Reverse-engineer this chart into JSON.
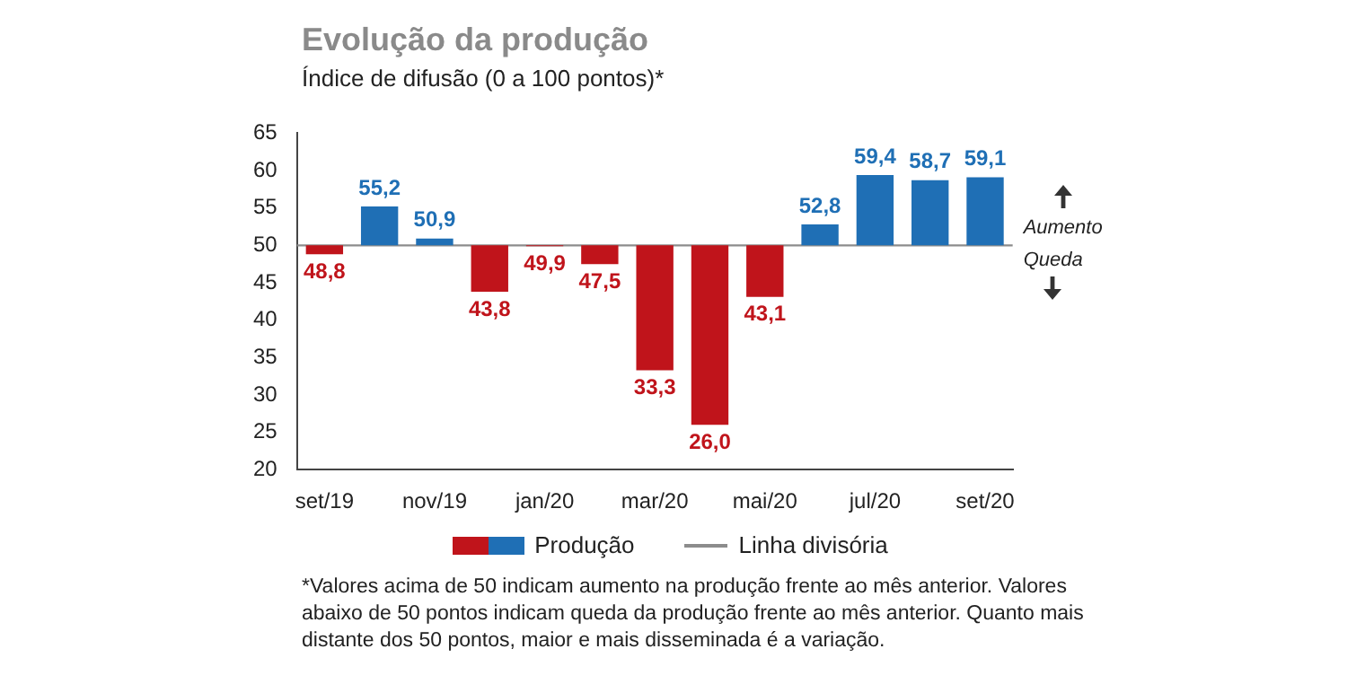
{
  "chart_data": {
    "type": "bar",
    "title": "Evolução da produção",
    "subtitle": "Índice de difusão (0 a 100 pontos)*",
    "categories": [
      "set/19",
      null,
      "nov/19",
      null,
      "jan/20",
      null,
      "mar/20",
      null,
      "mai/20",
      null,
      "jul/20",
      null,
      "set/20"
    ],
    "series": [
      {
        "name": "Produção",
        "values": [
          -1.2,
          5.2,
          0.9,
          -6.2,
          -0.1,
          -2.5,
          -16.7,
          -24.0,
          -6.9,
          2.8,
          9.4,
          8.7,
          9.1
        ],
        "base": [
          50,
          50,
          50,
          50,
          50,
          50,
          50,
          50,
          50,
          50,
          50,
          50,
          50
        ],
        "colors": [
          "#c0141b",
          "#1f6fb5",
          "#1f6fb5",
          "#c0141b",
          "#c0141b",
          "#c0141b",
          "#c0141b",
          "#c0141b",
          "#c0141b",
          "#1f6fb5",
          "#1f6fb5",
          "#1f6fb5",
          "#1f6fb5"
        ],
        "value_labels": [
          "48,8",
          "55,2",
          "50,9",
          "43,8",
          "49,9",
          "47,5",
          "33,3",
          "26,0",
          "43,1",
          "52,8",
          "59,4",
          "58,7",
          "59,1"
        ]
      }
    ],
    "ylim": [
      20,
      65
    ],
    "yticks": [
      20,
      25,
      30,
      35,
      40,
      45,
      50,
      55,
      60,
      65
    ],
    "ref_lines": [
      {
        "axis": "y",
        "value": 50,
        "label": "Linha divisória",
        "color": "#8c8c8c"
      }
    ],
    "annotations": [
      "Aumento",
      "Queda",
      "*Valores acima de 50 indicam aumento na produção frente ao mês anterior. Valores abaixo de 50 pontos indicam queda da produção frente ao mês anterior. Quanto mais distante dos 50 pontos, maior e mais disseminada é a variação."
    ],
    "legend": "bottom",
    "grid": false
  }
}
